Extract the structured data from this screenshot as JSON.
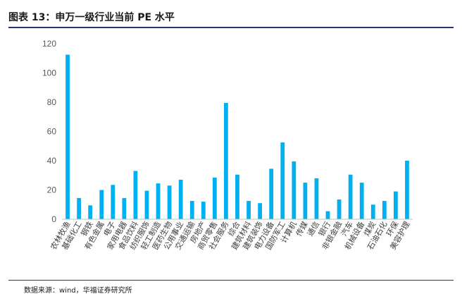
{
  "title": "图表 13：申万一级行业当前 PE 水平",
  "source": "数据来源：wind，华福证券研究所",
  "colors": {
    "bar": "#00B0F0",
    "rule": "#1f3a6e",
    "axis": "#bfbfbf"
  },
  "chart_data": {
    "type": "bar",
    "title": "",
    "xlabel": "",
    "ylabel": "",
    "ylim": [
      0,
      120
    ],
    "yticks": [
      0,
      20,
      40,
      60,
      80,
      100,
      120
    ],
    "grid": false,
    "legend": "none",
    "categories": [
      "农林牧渔",
      "基础化工",
      "钢铁",
      "有色金属",
      "电子",
      "家用电器",
      "食品饮料",
      "纺织服饰",
      "轻工制造",
      "医药生物",
      "公用事业",
      "交通运输",
      "房地产",
      "商贸零售",
      "社会服务",
      "综合",
      "建筑材料",
      "建筑装饰",
      "电力设备",
      "国防军工",
      "计算机",
      "传媒",
      "通信",
      "银行",
      "非银金融",
      "汽车",
      "机械设备",
      "煤炭",
      "石油石化",
      "环保",
      "美容护理"
    ],
    "values": [
      112.5,
      14.5,
      9.5,
      20,
      23.5,
      14.5,
      33,
      19.5,
      24.5,
      23,
      27,
      12.5,
      12,
      28.5,
      79.5,
      30.5,
      12.5,
      11,
      34.5,
      52.5,
      39.5,
      25,
      28,
      5.5,
      13.5,
      30.5,
      25,
      10,
      12.5,
      19,
      40
    ]
  }
}
